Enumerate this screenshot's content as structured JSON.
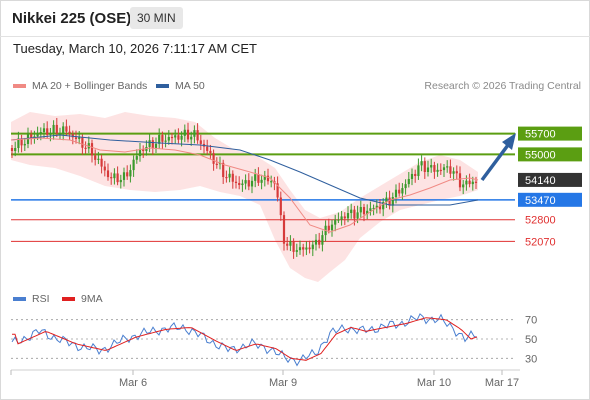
{
  "header": {
    "title": "Nikkei 225 (OSE)",
    "timeframe": "30 MIN"
  },
  "datetime": "Tuesday, March 10, 2026 7:11:17 AM CET",
  "legend": {
    "ma20": {
      "label": "MA 20 + Bollinger Bands",
      "color": "#f08a84"
    },
    "ma50": {
      "label": "MA 50",
      "color": "#2f5f9e"
    },
    "credit": "Research © 2026 Trading Central"
  },
  "rsi_legend": {
    "rsi": {
      "label": "RSI",
      "color": "#4a7fd0"
    },
    "ma9": {
      "label": "9MA",
      "color": "#e02020"
    }
  },
  "chart_data": [
    {
      "type": "line",
      "title": "",
      "series": [
        {
          "name": "MA 20 + Bollinger Bands",
          "color": "#f08a84"
        },
        {
          "name": "MA 50",
          "color": "#2f5f9e"
        }
      ],
      "x_ticks": [
        "Mar 6",
        "Mar 9",
        "Mar 10",
        "Mar 17"
      ],
      "y_levels": [
        {
          "value": 55700,
          "label": "55700",
          "kind": "resistance",
          "color": "#5b9e12"
        },
        {
          "value": 55000,
          "label": "55000",
          "kind": "resistance",
          "color": "#5b9e12"
        },
        {
          "value": 54140,
          "label": "54140",
          "kind": "last",
          "color": "#333333"
        },
        {
          "value": 53470,
          "label": "53470",
          "kind": "pivot",
          "color": "#2577e6"
        },
        {
          "value": 52800,
          "label": "52800",
          "kind": "support",
          "color": "#e03030"
        },
        {
          "value": 52070,
          "label": "52070",
          "kind": "support",
          "color": "#e03030"
        }
      ],
      "ylim": [
        50500,
        57000
      ]
    },
    {
      "type": "line",
      "title": "",
      "series": [
        {
          "name": "RSI",
          "color": "#4a7fd0"
        },
        {
          "name": "9MA",
          "color": "#e02020"
        }
      ],
      "y_ticks": [
        "70",
        "50",
        "30"
      ],
      "ylim": [
        20,
        80
      ]
    }
  ]
}
